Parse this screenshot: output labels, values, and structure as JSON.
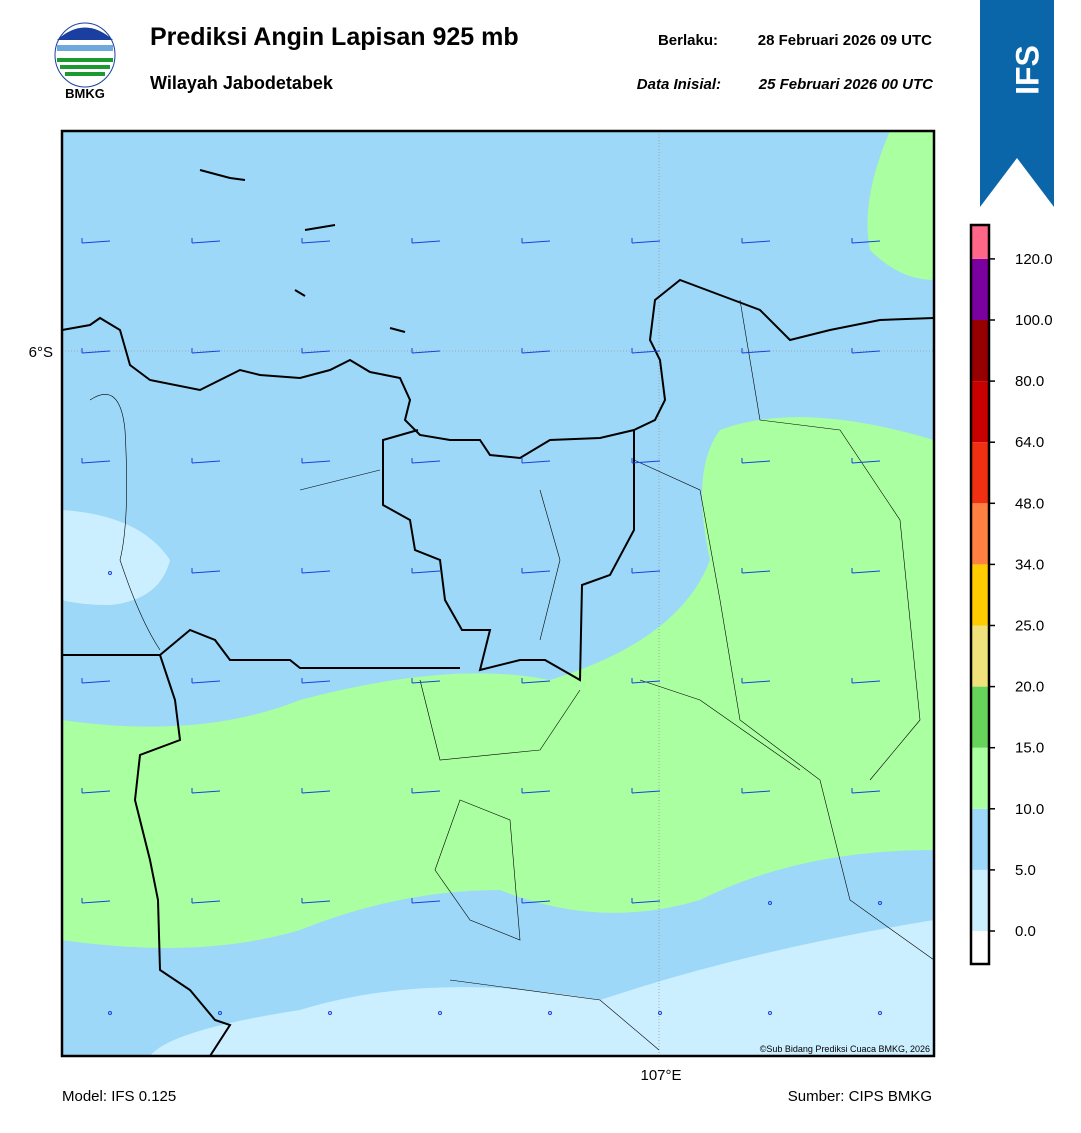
{
  "header": {
    "logo_text": "BMKG",
    "title": "Prediksi Angin Lapisan 925 mb",
    "subtitle": "Wilayah Jabodetabek",
    "valid_label": "Berlaku:",
    "valid_value": "28 Februari 2026 09 UTC",
    "init_label": "Data Inisial:",
    "init_value": "25 Februari 2026 00 UTC",
    "ribbon": "IFS"
  },
  "map": {
    "lat_label": "6°S",
    "lon_label": "107°E",
    "credit": "©Sub Bidang Prediksi Cuaca BMKG, 2026"
  },
  "colorbar": {
    "labels": [
      "0.0",
      "5.0",
      "10.0",
      "15.0",
      "20.0",
      "25.0",
      "34.0",
      "48.0",
      "64.0",
      "80.0",
      "100.0",
      "120.0"
    ],
    "colors": [
      "#ffffff",
      "#ccefff",
      "#9dd8f9",
      "#aaffa0",
      "#66d45a",
      "#f0e27a",
      "#ffcc00",
      "#ff8040",
      "#f03010",
      "#c80000",
      "#960000",
      "#7a00a0",
      "#ff6688"
    ]
  },
  "footer": {
    "model": "Model: IFS 0.125",
    "source": "Sumber: CIPS BMKG"
  }
}
